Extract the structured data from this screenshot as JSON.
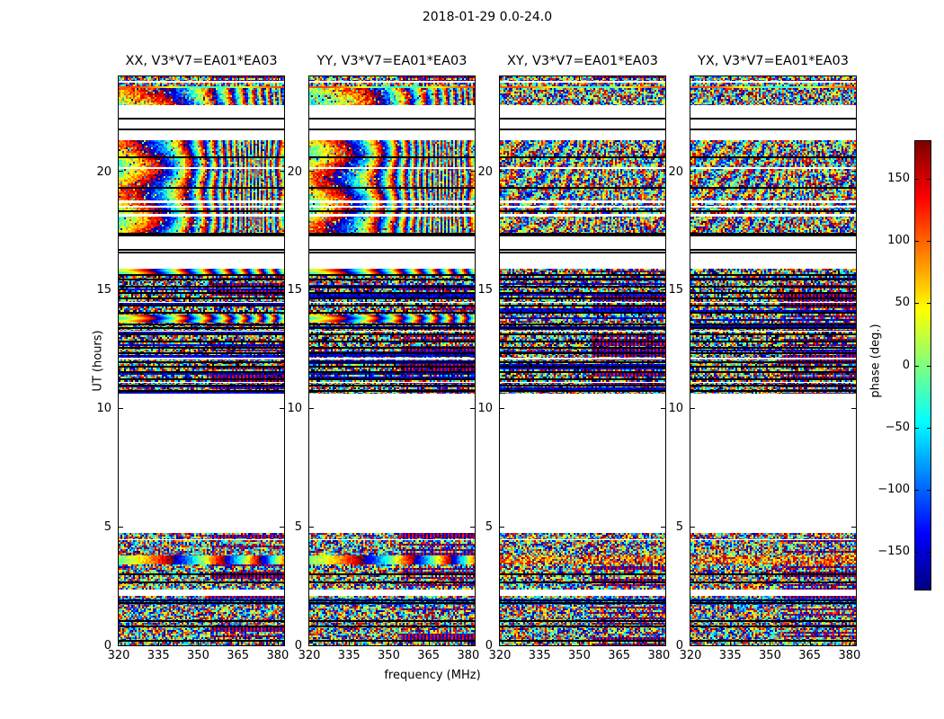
{
  "figure_title": "2018-01-29 0.0-24.0",
  "chart_data": {
    "type": "heatmap",
    "title": "2018-01-29 0.0-24.0",
    "xlabel": "frequency (MHz)",
    "ylabel": "UT (hours)",
    "colormap": "jet",
    "x_range": [
      320,
      382.4
    ],
    "y_range": [
      0,
      24
    ],
    "x_ticks": [
      {
        "v": 320,
        "label": "320"
      },
      {
        "v": 335,
        "label": "335"
      },
      {
        "v": 350,
        "label": "350"
      },
      {
        "v": 365,
        "label": "365"
      },
      {
        "v": 380,
        "label": "380"
      }
    ],
    "y_ticks": [
      {
        "v": 0,
        "label": "0"
      },
      {
        "v": 5,
        "label": "5"
      },
      {
        "v": 10,
        "label": "10"
      },
      {
        "v": 15,
        "label": "15"
      },
      {
        "v": 20,
        "label": "20"
      }
    ],
    "colorbar": {
      "label": "phase (deg.)",
      "min": -180,
      "max": 180,
      "ticks": [
        {
          "v": 150,
          "label": "150"
        },
        {
          "v": 100,
          "label": "100"
        },
        {
          "v": 50,
          "label": "50"
        },
        {
          "v": 0,
          "label": "0"
        },
        {
          "v": -50,
          "label": "−50"
        },
        {
          "v": -100,
          "label": "−100"
        },
        {
          "v": -150,
          "label": "−150"
        }
      ]
    },
    "panels": [
      {
        "title": "XX, V3*V7=EA01*EA03",
        "pol": "XX",
        "smooth_phase": true
      },
      {
        "title": "YY, V3*V7=EA01*EA03",
        "pol": "YY",
        "smooth_phase": true
      },
      {
        "title": "XY, V3*V7=EA01*EA03",
        "pol": "XY",
        "smooth_phase": false
      },
      {
        "title": "YX, V3*V7=EA01*EA03",
        "pol": "YX",
        "smooth_phase": false
      }
    ],
    "segments": [
      {
        "ut": [
          0.0,
          0.15
        ],
        "kind": "noise"
      },
      {
        "ut": [
          0.15,
          0.23
        ],
        "kind": "black"
      },
      {
        "ut": [
          0.23,
          1.71
        ],
        "kind": "noise",
        "black_rows": [
          [
            0.78,
            0.84
          ],
          [
            1.02,
            1.08
          ]
        ]
      },
      {
        "ut": [
          1.71,
          1.97
        ],
        "kind": "blueband",
        "black_rows": [
          [
            1.78,
            1.82
          ],
          [
            1.88,
            1.92
          ]
        ]
      },
      {
        "ut": [
          1.97,
          2.09
        ],
        "kind": "noise"
      },
      {
        "ut": [
          2.09,
          2.35
        ],
        "kind": "white"
      },
      {
        "ut": [
          2.35,
          2.96
        ],
        "kind": "noise",
        "black_rows": [
          [
            2.62,
            2.68
          ]
        ]
      },
      {
        "ut": [
          2.96,
          3.03
        ],
        "kind": "black"
      },
      {
        "ut": [
          3.03,
          3.41
        ],
        "kind": "noise"
      },
      {
        "ut": [
          3.41,
          3.79
        ],
        "kind": "hotband"
      },
      {
        "ut": [
          3.79,
          4.74
        ],
        "kind": "noise",
        "white_rows": [
          [
            4.42,
            4.48
          ]
        ]
      },
      {
        "ut": [
          4.74,
          10.62
        ],
        "kind": "white"
      },
      {
        "ut": [
          10.62,
          15.89
        ],
        "kind": "dense",
        "black_rows": [
          [
            10.72,
            10.78
          ],
          [
            10.95,
            11.0
          ],
          [
            11.2,
            11.26
          ],
          [
            11.5,
            11.56
          ],
          [
            11.72,
            11.78
          ],
          [
            11.95,
            12.0
          ],
          [
            12.3,
            12.36
          ],
          [
            12.55,
            12.6
          ],
          [
            12.78,
            12.84
          ],
          [
            13.1,
            13.16
          ],
          [
            13.38,
            13.44
          ],
          [
            13.52,
            13.56
          ],
          [
            14.02,
            14.08
          ],
          [
            14.32,
            14.38
          ],
          [
            14.6,
            14.66
          ],
          [
            14.85,
            14.9
          ],
          [
            15.1,
            15.16
          ],
          [
            15.4,
            15.46
          ],
          [
            15.6,
            15.64
          ]
        ],
        "white_rows": [
          [
            11.06,
            11.12
          ],
          [
            12.06,
            12.12
          ],
          [
            13.22,
            13.28
          ],
          [
            14.44,
            14.5
          ]
        ],
        "smooth_rows": [
          [
            13.6,
            13.95
          ],
          [
            15.64,
            15.89
          ]
        ]
      },
      {
        "ut": [
          15.89,
          16.53
        ],
        "kind": "white"
      },
      {
        "ut": [
          16.53,
          16.6
        ],
        "kind": "black"
      },
      {
        "ut": [
          16.6,
          16.64
        ],
        "kind": "white"
      },
      {
        "ut": [
          16.64,
          16.72
        ],
        "kind": "black"
      },
      {
        "ut": [
          16.72,
          17.25
        ],
        "kind": "white"
      },
      {
        "ut": [
          17.25,
          17.4
        ],
        "kind": "black"
      },
      {
        "ut": [
          17.4,
          21.3
        ],
        "kind": "main",
        "white_rows": [
          [
            18.08,
            18.2
          ],
          [
            18.46,
            18.54
          ],
          [
            18.65,
            18.76
          ],
          [
            20.1,
            20.17
          ]
        ],
        "black_rows": [
          [
            18.3,
            18.36
          ],
          [
            19.28,
            19.34
          ],
          [
            20.55,
            20.62
          ]
        ]
      },
      {
        "ut": [
          21.3,
          21.72
        ],
        "kind": "white"
      },
      {
        "ut": [
          21.72,
          21.8
        ],
        "kind": "black"
      },
      {
        "ut": [
          21.8,
          22.18
        ],
        "kind": "white"
      },
      {
        "ut": [
          22.18,
          22.26
        ],
        "kind": "black"
      },
      {
        "ut": [
          22.26,
          22.78
        ],
        "kind": "white"
      },
      {
        "ut": [
          22.78,
          23.5
        ],
        "kind": "top"
      },
      {
        "ut": [
          23.5,
          23.58
        ],
        "kind": "hotline"
      },
      {
        "ut": [
          23.58,
          23.73
        ],
        "kind": "noise"
      },
      {
        "ut": [
          23.73,
          23.8
        ],
        "kind": "white"
      },
      {
        "ut": [
          23.8,
          24.0
        ],
        "kind": "noise"
      }
    ]
  }
}
